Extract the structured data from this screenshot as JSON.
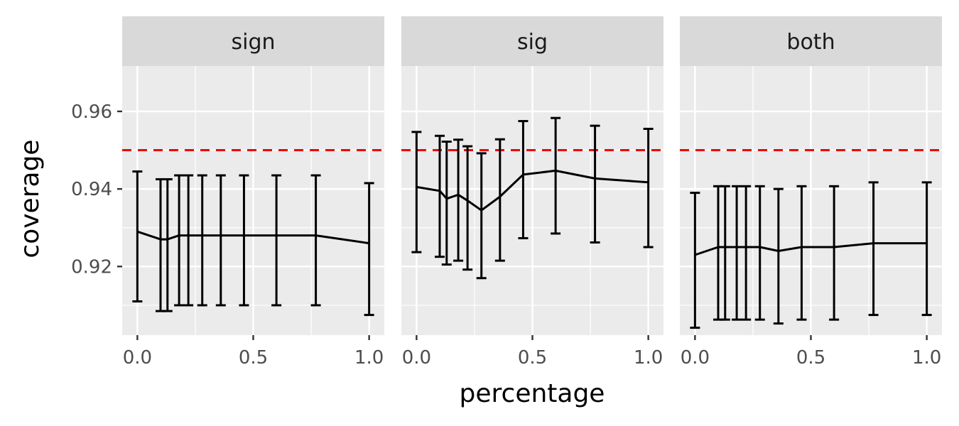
{
  "chart_data": {
    "type": "line",
    "facets": [
      {
        "label": "sign",
        "x": [
          0.0,
          0.1,
          0.13,
          0.18,
          0.22,
          0.28,
          0.36,
          0.46,
          0.6,
          0.77,
          1.0
        ],
        "y": [
          0.929,
          0.927,
          0.927,
          0.928,
          0.928,
          0.928,
          0.928,
          0.928,
          0.928,
          0.928,
          0.926
        ],
        "lower": [
          0.911,
          0.9085,
          0.9085,
          0.91,
          0.91,
          0.91,
          0.91,
          0.91,
          0.91,
          0.91,
          0.9075
        ],
        "upper": [
          0.9445,
          0.9425,
          0.9425,
          0.9435,
          0.9435,
          0.9435,
          0.9435,
          0.9435,
          0.9435,
          0.9435,
          0.9415
        ]
      },
      {
        "label": "sig",
        "x": [
          0.0,
          0.1,
          0.13,
          0.18,
          0.22,
          0.28,
          0.36,
          0.46,
          0.6,
          0.77,
          1.0
        ],
        "y": [
          0.9405,
          0.9395,
          0.9375,
          0.9385,
          0.937,
          0.9345,
          0.938,
          0.9437,
          0.9447,
          0.9427,
          0.9417
        ],
        "lower": [
          0.9237,
          0.9225,
          0.9205,
          0.9215,
          0.9192,
          0.917,
          0.9215,
          0.9273,
          0.9285,
          0.9262,
          0.925
        ],
        "upper": [
          0.9547,
          0.9537,
          0.9522,
          0.9527,
          0.951,
          0.9492,
          0.9528,
          0.9575,
          0.9583,
          0.9563,
          0.9555
        ]
      },
      {
        "label": "both",
        "x": [
          0.0,
          0.1,
          0.13,
          0.18,
          0.22,
          0.28,
          0.36,
          0.46,
          0.6,
          0.77,
          1.0
        ],
        "y": [
          0.923,
          0.925,
          0.925,
          0.925,
          0.925,
          0.925,
          0.924,
          0.925,
          0.925,
          0.926,
          0.926
        ],
        "lower": [
          0.9042,
          0.9063,
          0.9063,
          0.9063,
          0.9063,
          0.9063,
          0.9053,
          0.9063,
          0.9063,
          0.9075,
          0.9075
        ],
        "upper": [
          0.939,
          0.9407,
          0.9407,
          0.9407,
          0.9407,
          0.9407,
          0.94,
          0.9407,
          0.9407,
          0.9417,
          0.9417
        ]
      }
    ],
    "reference_line": {
      "y": 0.95,
      "color": "#ee0000",
      "style": "dashed"
    },
    "xlabel": "percentage",
    "ylabel": "coverage",
    "xlim": [
      -0.0655,
      1.0655
    ],
    "ylim": [
      0.9023,
      0.9717
    ],
    "x_ticks": [
      0.0,
      0.5,
      1.0
    ],
    "x_tick_labels": [
      "0.0",
      "0.5",
      "1.0"
    ],
    "y_ticks": [
      0.92,
      0.94,
      0.96
    ],
    "y_tick_labels": [
      "0.92",
      "0.94",
      "0.96"
    ],
    "grid": true,
    "legend": "none"
  },
  "colors": {
    "panel_bg": "#ebebeb",
    "strip_bg": "#d9d9d9",
    "grid": "#ffffff",
    "series": "#000000",
    "reference": "#ee0000"
  }
}
